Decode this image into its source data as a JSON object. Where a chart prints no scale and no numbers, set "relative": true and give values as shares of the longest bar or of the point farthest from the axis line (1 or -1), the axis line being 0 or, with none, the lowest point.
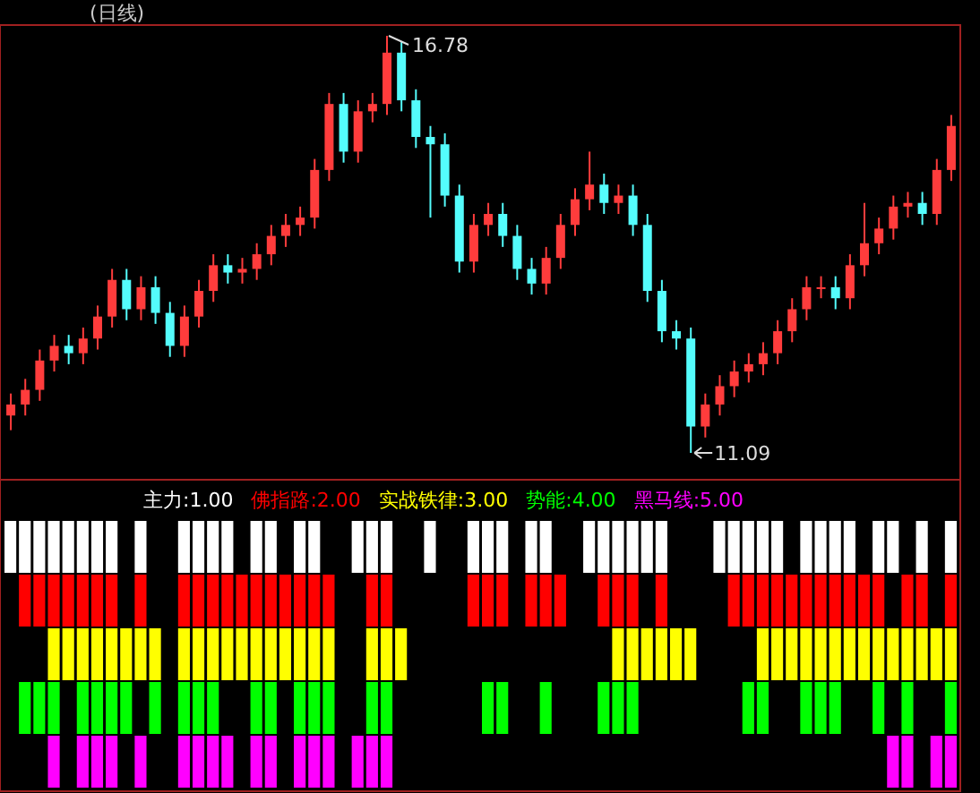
{
  "chart_data": [
    {
      "type": "candlestick",
      "title": "(日线)",
      "categories": [
        null,
        null,
        null,
        null,
        null,
        null,
        null,
        null,
        null,
        null,
        null,
        null,
        null,
        null,
        null,
        null,
        null,
        null,
        null,
        null,
        null,
        null,
        null,
        null,
        null,
        null,
        null,
        null,
        null,
        null,
        null,
        null,
        null,
        null,
        null,
        null,
        null,
        null,
        null,
        null,
        null,
        null,
        null,
        null,
        null,
        null,
        null,
        null,
        null,
        null,
        null,
        null,
        null,
        null,
        null,
        null,
        null,
        null,
        null,
        null,
        null,
        null,
        null,
        null,
        null,
        null
      ],
      "ohlc": [
        [
          11.6,
          11.9,
          11.4,
          11.75
        ],
        [
          11.75,
          12.1,
          11.6,
          11.95
        ],
        [
          11.95,
          12.5,
          11.8,
          12.35
        ],
        [
          12.35,
          12.7,
          12.2,
          12.55
        ],
        [
          12.55,
          12.7,
          12.3,
          12.45
        ],
        [
          12.45,
          12.8,
          12.3,
          12.65
        ],
        [
          12.65,
          13.1,
          12.5,
          12.95
        ],
        [
          12.95,
          13.6,
          12.8,
          13.45
        ],
        [
          13.45,
          13.6,
          12.9,
          13.05
        ],
        [
          13.05,
          13.5,
          12.9,
          13.35
        ],
        [
          13.35,
          13.5,
          12.85,
          13.0
        ],
        [
          13.0,
          13.15,
          12.4,
          12.55
        ],
        [
          12.55,
          13.1,
          12.4,
          12.95
        ],
        [
          12.95,
          13.45,
          12.8,
          13.3
        ],
        [
          13.3,
          13.8,
          13.15,
          13.65
        ],
        [
          13.65,
          13.8,
          13.4,
          13.55
        ],
        [
          13.55,
          13.75,
          13.4,
          13.6
        ],
        [
          13.6,
          13.95,
          13.45,
          13.8
        ],
        [
          13.8,
          14.2,
          13.65,
          14.05
        ],
        [
          14.05,
          14.35,
          13.9,
          14.2
        ],
        [
          14.2,
          14.45,
          14.05,
          14.3
        ],
        [
          14.3,
          15.1,
          14.15,
          14.95
        ],
        [
          14.95,
          16.0,
          14.8,
          15.85
        ],
        [
          15.85,
          16.0,
          15.05,
          15.2
        ],
        [
          15.2,
          15.9,
          15.05,
          15.75
        ],
        [
          15.75,
          16.0,
          15.6,
          15.85
        ],
        [
          15.85,
          16.78,
          15.7,
          16.55
        ],
        [
          16.55,
          16.7,
          15.75,
          15.9
        ],
        [
          15.9,
          16.05,
          15.25,
          15.4
        ],
        [
          15.4,
          15.55,
          14.3,
          15.3
        ],
        [
          15.3,
          15.45,
          14.45,
          14.6
        ],
        [
          14.6,
          14.75,
          13.55,
          13.7
        ],
        [
          13.7,
          14.35,
          13.55,
          14.2
        ],
        [
          14.2,
          14.5,
          14.05,
          14.35
        ],
        [
          14.35,
          14.5,
          13.9,
          14.05
        ],
        [
          14.05,
          14.2,
          13.45,
          13.6
        ],
        [
          13.6,
          13.75,
          13.25,
          13.4
        ],
        [
          13.4,
          13.9,
          13.25,
          13.75
        ],
        [
          13.75,
          14.35,
          13.6,
          14.2
        ],
        [
          14.2,
          14.7,
          14.05,
          14.55
        ],
        [
          14.55,
          15.2,
          14.4,
          14.75
        ],
        [
          14.75,
          14.9,
          14.35,
          14.5
        ],
        [
          14.5,
          14.75,
          14.35,
          14.6
        ],
        [
          14.6,
          14.75,
          14.05,
          14.2
        ],
        [
          14.2,
          14.35,
          13.15,
          13.3
        ],
        [
          13.3,
          13.45,
          12.6,
          12.75
        ],
        [
          12.75,
          12.9,
          12.5,
          12.65
        ],
        [
          12.65,
          12.8,
          11.09,
          11.45
        ],
        [
          11.45,
          11.9,
          11.3,
          11.75
        ],
        [
          11.75,
          12.15,
          11.6,
          12.0
        ],
        [
          12.0,
          12.35,
          11.85,
          12.2
        ],
        [
          12.2,
          12.45,
          12.05,
          12.3
        ],
        [
          12.3,
          12.6,
          12.15,
          12.45
        ],
        [
          12.45,
          12.9,
          12.3,
          12.75
        ],
        [
          12.75,
          13.2,
          12.6,
          13.05
        ],
        [
          13.05,
          13.5,
          12.9,
          13.35
        ],
        [
          13.35,
          13.5,
          13.2,
          13.35
        ],
        [
          13.35,
          13.5,
          13.05,
          13.2
        ],
        [
          13.2,
          13.8,
          13.05,
          13.65
        ],
        [
          13.65,
          14.5,
          13.5,
          13.95
        ],
        [
          13.95,
          14.3,
          13.8,
          14.15
        ],
        [
          14.15,
          14.6,
          14.0,
          14.45
        ],
        [
          14.45,
          14.65,
          14.3,
          14.5
        ],
        [
          14.5,
          14.65,
          14.2,
          14.35
        ],
        [
          14.35,
          15.1,
          14.2,
          14.95
        ],
        [
          14.95,
          15.7,
          14.8,
          15.55
        ]
      ],
      "colors": [
        "#ff3c3c",
        "#ff3c3c",
        "#ff3c3c",
        "#ff3c3c",
        "#54fcfc",
        "#ff3c3c",
        "#ff3c3c",
        "#ff3c3c",
        "#54fcfc",
        "#ff3c3c",
        "#54fcfc",
        "#54fcfc",
        "#ff3c3c",
        "#ff3c3c",
        "#ff3c3c",
        "#54fcfc",
        "#ff3c3c",
        "#ff3c3c",
        "#ff3c3c",
        "#ff3c3c",
        "#ff3c3c",
        "#ff3c3c",
        "#ff3c3c",
        "#54fcfc",
        "#ff3c3c",
        "#ff3c3c",
        "#ff3c3c",
        "#54fcfc",
        "#54fcfc",
        "#54fcfc",
        "#54fcfc",
        "#54fcfc",
        "#ff3c3c",
        "#ff3c3c",
        "#54fcfc",
        "#54fcfc",
        "#54fcfc",
        "#ff3c3c",
        "#ff3c3c",
        "#ff3c3c",
        "#ff3c3c",
        "#54fcfc",
        "#ff3c3c",
        "#54fcfc",
        "#54fcfc",
        "#54fcfc",
        "#54fcfc",
        "#54fcfc",
        "#ff3c3c",
        "#ff3c3c",
        "#ff3c3c",
        "#ff3c3c",
        "#ff3c3c",
        "#ff3c3c",
        "#ff3c3c",
        "#ff3c3c",
        "#ff3c3c",
        "#54fcfc",
        "#ff3c3c",
        "#ff3c3c",
        "#ff3c3c",
        "#ff3c3c",
        "#ff3c3c",
        "#54fcfc",
        "#ff3c3c",
        "#ff3c3c"
      ],
      "annotations": [
        "16.78",
        "11.09"
      ]
    },
    {
      "type": "bar",
      "relative": true,
      "categories": [
        null,
        null,
        null,
        null,
        null,
        null,
        null,
        null,
        null,
        null,
        null,
        null,
        null,
        null,
        null,
        null,
        null,
        null,
        null,
        null,
        null,
        null,
        null,
        null,
        null,
        null,
        null,
        null,
        null,
        null,
        null,
        null,
        null,
        null,
        null,
        null,
        null,
        null,
        null,
        null,
        null,
        null,
        null,
        null,
        null,
        null,
        null,
        null,
        null,
        null,
        null,
        null,
        null,
        null,
        null,
        null,
        null,
        null,
        null,
        null,
        null,
        null,
        null,
        null,
        null,
        null
      ],
      "series": [
        {
          "name": "主力:1.00",
          "color": "#ffffff",
          "values": [
            1,
            1,
            1,
            1,
            1,
            1,
            1,
            1,
            null,
            1,
            null,
            null,
            1,
            1,
            1,
            1,
            null,
            1,
            1,
            null,
            1,
            1,
            null,
            null,
            1,
            1,
            1,
            null,
            null,
            1,
            null,
            null,
            1,
            1,
            1,
            null,
            1,
            1,
            null,
            null,
            1,
            1,
            1,
            1,
            1,
            1,
            null,
            null,
            null,
            1,
            1,
            1,
            1,
            1,
            null,
            1,
            1,
            1,
            1,
            null,
            1,
            1,
            null,
            1,
            null,
            1
          ]
        }
      ]
    },
    {
      "type": "bar",
      "relative": true,
      "categories": [
        null,
        null,
        null,
        null,
        null,
        null,
        null,
        null,
        null,
        null,
        null,
        null,
        null,
        null,
        null,
        null,
        null,
        null,
        null,
        null,
        null,
        null,
        null,
        null,
        null,
        null,
        null,
        null,
        null,
        null,
        null,
        null,
        null,
        null,
        null,
        null,
        null,
        null,
        null,
        null,
        null,
        null,
        null,
        null,
        null,
        null,
        null,
        null,
        null,
        null,
        null,
        null,
        null,
        null,
        null,
        null,
        null,
        null,
        null,
        null,
        null,
        null,
        null,
        null,
        null,
        null
      ],
      "series": [
        {
          "name": "佛指路:2.00",
          "color": "#ff0000",
          "values": [
            null,
            1,
            1,
            1,
            1,
            1,
            1,
            1,
            null,
            1,
            null,
            null,
            1,
            1,
            1,
            1,
            1,
            1,
            1,
            1,
            1,
            1,
            1,
            null,
            null,
            1,
            1,
            null,
            null,
            null,
            null,
            null,
            1,
            1,
            1,
            null,
            1,
            1,
            1,
            null,
            null,
            1,
            1,
            1,
            null,
            1,
            null,
            null,
            null,
            null,
            1,
            1,
            1,
            1,
            1,
            1,
            1,
            1,
            1,
            1,
            1,
            null,
            1,
            1,
            null,
            1
          ]
        }
      ]
    },
    {
      "type": "bar",
      "relative": true,
      "categories": [
        null,
        null,
        null,
        null,
        null,
        null,
        null,
        null,
        null,
        null,
        null,
        null,
        null,
        null,
        null,
        null,
        null,
        null,
        null,
        null,
        null,
        null,
        null,
        null,
        null,
        null,
        null,
        null,
        null,
        null,
        null,
        null,
        null,
        null,
        null,
        null,
        null,
        null,
        null,
        null,
        null,
        null,
        null,
        null,
        null,
        null,
        null,
        null,
        null,
        null,
        null,
        null,
        null,
        null,
        null,
        null,
        null,
        null,
        null,
        null,
        null,
        null,
        null,
        null,
        null,
        null
      ],
      "series": [
        {
          "name": "实战铁律:3.00",
          "color": "#ffff00",
          "values": [
            null,
            null,
            null,
            1,
            1,
            1,
            1,
            1,
            1,
            1,
            1,
            null,
            1,
            1,
            1,
            1,
            1,
            1,
            1,
            1,
            1,
            1,
            1,
            null,
            null,
            1,
            1,
            1,
            null,
            null,
            null,
            null,
            null,
            null,
            null,
            null,
            null,
            null,
            null,
            null,
            null,
            null,
            1,
            1,
            1,
            1,
            1,
            1,
            null,
            null,
            null,
            null,
            1,
            1,
            1,
            1,
            1,
            1,
            1,
            1,
            1,
            1,
            1,
            1,
            1,
            1
          ]
        }
      ]
    },
    {
      "type": "bar",
      "relative": true,
      "categories": [
        null,
        null,
        null,
        null,
        null,
        null,
        null,
        null,
        null,
        null,
        null,
        null,
        null,
        null,
        null,
        null,
        null,
        null,
        null,
        null,
        null,
        null,
        null,
        null,
        null,
        null,
        null,
        null,
        null,
        null,
        null,
        null,
        null,
        null,
        null,
        null,
        null,
        null,
        null,
        null,
        null,
        null,
        null,
        null,
        null,
        null,
        null,
        null,
        null,
        null,
        null,
        null,
        null,
        null,
        null,
        null,
        null,
        null,
        null,
        null,
        null,
        null,
        null,
        null,
        null,
        null
      ],
      "series": [
        {
          "name": "势能:4.00",
          "color": "#00ff00",
          "values": [
            null,
            1,
            1,
            1,
            null,
            1,
            1,
            1,
            1,
            null,
            1,
            null,
            1,
            1,
            1,
            null,
            null,
            1,
            1,
            null,
            1,
            1,
            1,
            null,
            null,
            1,
            1,
            null,
            null,
            null,
            null,
            null,
            null,
            1,
            1,
            null,
            null,
            1,
            null,
            null,
            null,
            1,
            1,
            1,
            null,
            null,
            null,
            null,
            null,
            null,
            null,
            1,
            1,
            null,
            null,
            1,
            1,
            1,
            null,
            null,
            1,
            null,
            1,
            null,
            null,
            1
          ]
        }
      ]
    },
    {
      "type": "bar",
      "relative": true,
      "categories": [
        null,
        null,
        null,
        null,
        null,
        null,
        null,
        null,
        null,
        null,
        null,
        null,
        null,
        null,
        null,
        null,
        null,
        null,
        null,
        null,
        null,
        null,
        null,
        null,
        null,
        null,
        null,
        null,
        null,
        null,
        null,
        null,
        null,
        null,
        null,
        null,
        null,
        null,
        null,
        null,
        null,
        null,
        null,
        null,
        null,
        null,
        null,
        null,
        null,
        null,
        null,
        null,
        null,
        null,
        null,
        null,
        null,
        null,
        null,
        null,
        null,
        null,
        null,
        null,
        null,
        null
      ],
      "series": [
        {
          "name": "黑马线:5.00",
          "color": "#ff00ff",
          "values": [
            null,
            null,
            null,
            1,
            null,
            1,
            1,
            1,
            null,
            1,
            null,
            null,
            1,
            1,
            1,
            1,
            null,
            1,
            1,
            null,
            1,
            1,
            1,
            null,
            1,
            1,
            1,
            null,
            null,
            null,
            null,
            null,
            null,
            null,
            null,
            null,
            null,
            null,
            null,
            null,
            null,
            null,
            null,
            null,
            null,
            null,
            null,
            null,
            null,
            null,
            null,
            null,
            null,
            null,
            null,
            null,
            null,
            null,
            null,
            null,
            null,
            1,
            1,
            null,
            1,
            1
          ]
        }
      ]
    }
  ]
}
